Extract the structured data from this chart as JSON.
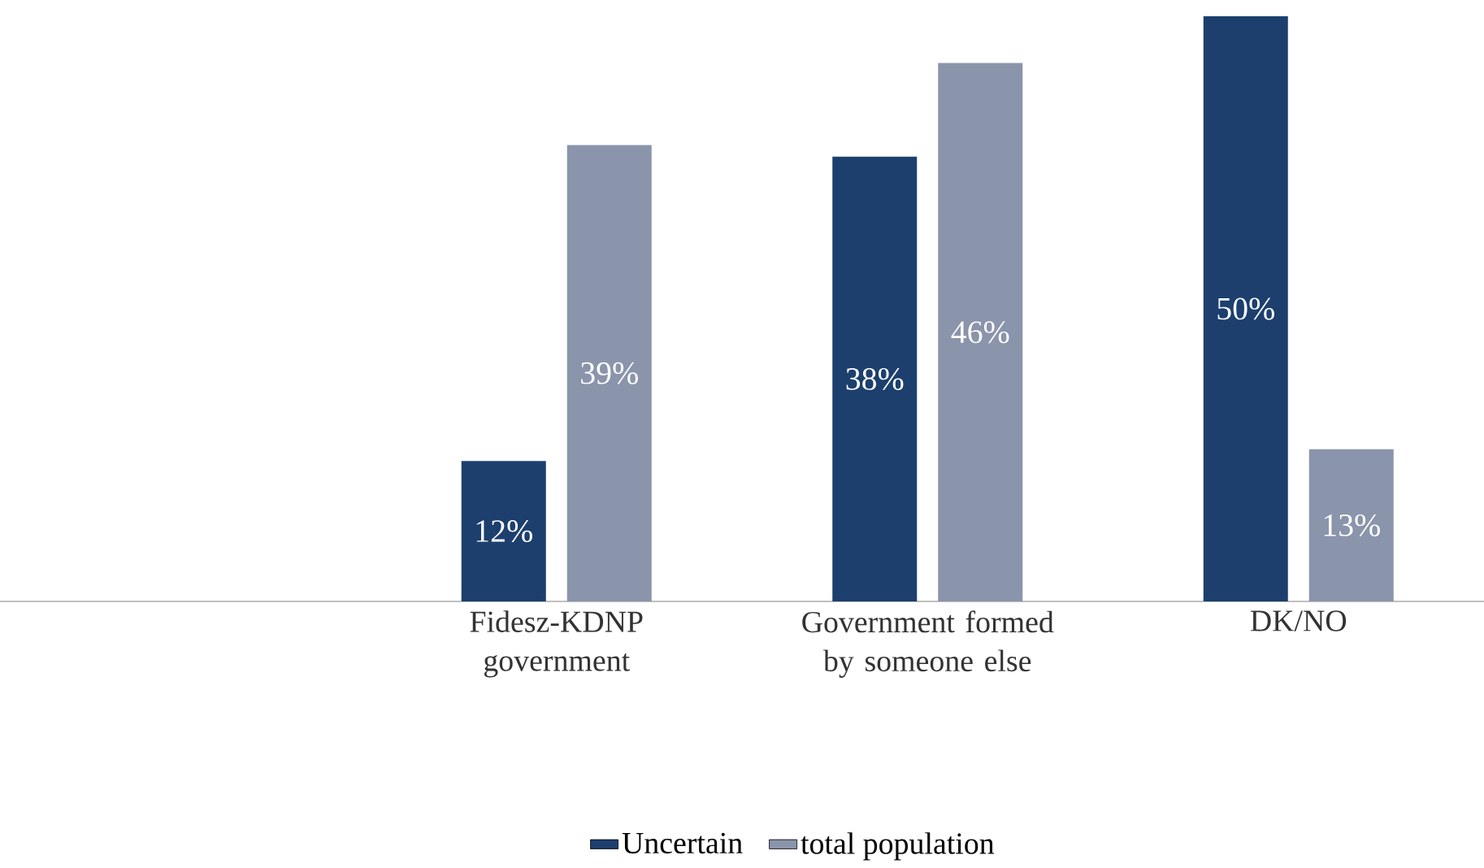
{
  "chart_data": {
    "type": "bar",
    "categories": [
      null,
      "Fidesz-KDNP government",
      "Government formed by someone else",
      "DK/NO"
    ],
    "series": [
      {
        "name": "Uncertain",
        "color": "#1c3f6e",
        "values": [
          null,
          12,
          38,
          50
        ],
        "value_labels": [
          null,
          "12%",
          "38%",
          "50%"
        ]
      },
      {
        "name": "total population",
        "color": "#8a94ab",
        "values": [
          null,
          39,
          46,
          13
        ],
        "value_labels": [
          null,
          "39%",
          "46%",
          "13%"
        ]
      }
    ],
    "legend": "bottom"
  }
}
